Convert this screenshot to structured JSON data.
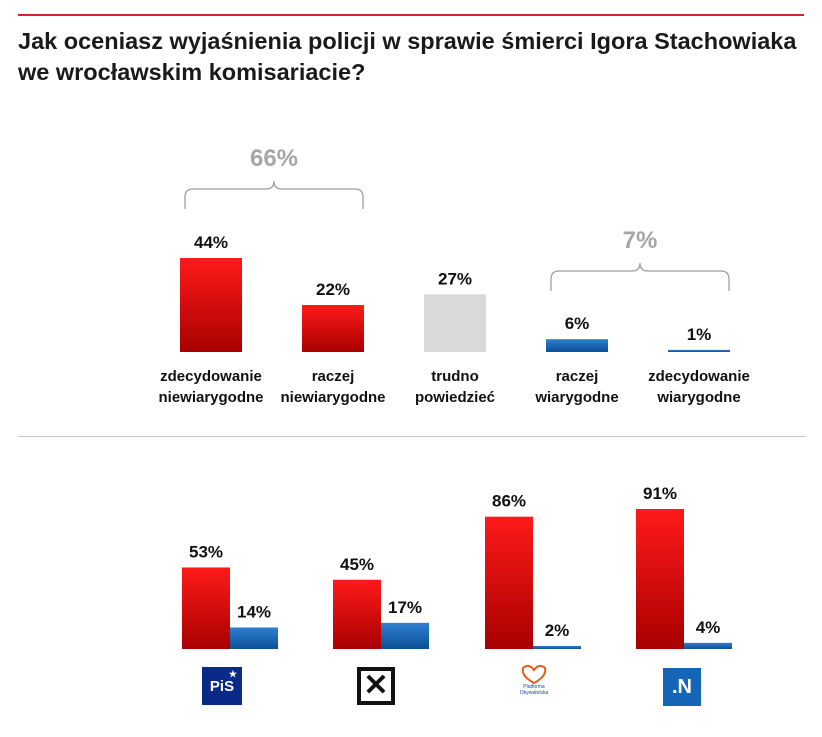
{
  "title": "Jak oceniasz wyjaśnienia policji w sprawie śmierci Igora Stachowiaka we wrocławskim komisariacie?",
  "chart_data": [
    {
      "type": "bar",
      "categories": [
        [
          "zdecydowanie",
          "niewiarygodne"
        ],
        [
          "raczej",
          "niewiarygodne"
        ],
        [
          "trudno",
          "powiedzieć"
        ],
        [
          "raczej",
          "wiarygodne"
        ],
        [
          "zdecydowanie",
          "wiarygodne"
        ]
      ],
      "values": [
        44,
        22,
        27,
        6,
        1
      ],
      "value_labels": [
        "44%",
        "22%",
        "27%",
        "6%",
        "1%"
      ],
      "bar_colors": [
        "red",
        "red",
        "gray",
        "blue",
        "blue"
      ],
      "groups": [
        {
          "label": "66%",
          "from": 0,
          "to": 1
        },
        {
          "label": "7%",
          "from": 3,
          "to": 4
        }
      ]
    },
    {
      "type": "bar",
      "categories": [
        "PiS",
        "Kukiz'15",
        "Platforma Obywatelska",
        ".N"
      ],
      "series": [
        {
          "values": [
            53,
            45,
            86,
            91
          ],
          "value_labels": [
            "53%",
            "45%",
            "86%",
            "91%"
          ],
          "color": "red"
        },
        {
          "values": [
            14,
            17,
            2,
            4
          ],
          "value_labels": [
            "14%",
            "17%",
            "2%",
            "4%"
          ],
          "color": "blue"
        }
      ]
    }
  ],
  "logos": {
    "pis": "PiS",
    "kukiz": "K",
    "po": "Platforma Obywatelska",
    "n": ".N"
  },
  "colors": {
    "accent_rule": "#d8212a",
    "red_top": "#ff1a1a",
    "red_bottom": "#a80000",
    "blue_top": "#2f7fd0",
    "blue_bottom": "#0b4f96",
    "gray": "#d9d9d9",
    "group_label": "#a6a6a6"
  }
}
